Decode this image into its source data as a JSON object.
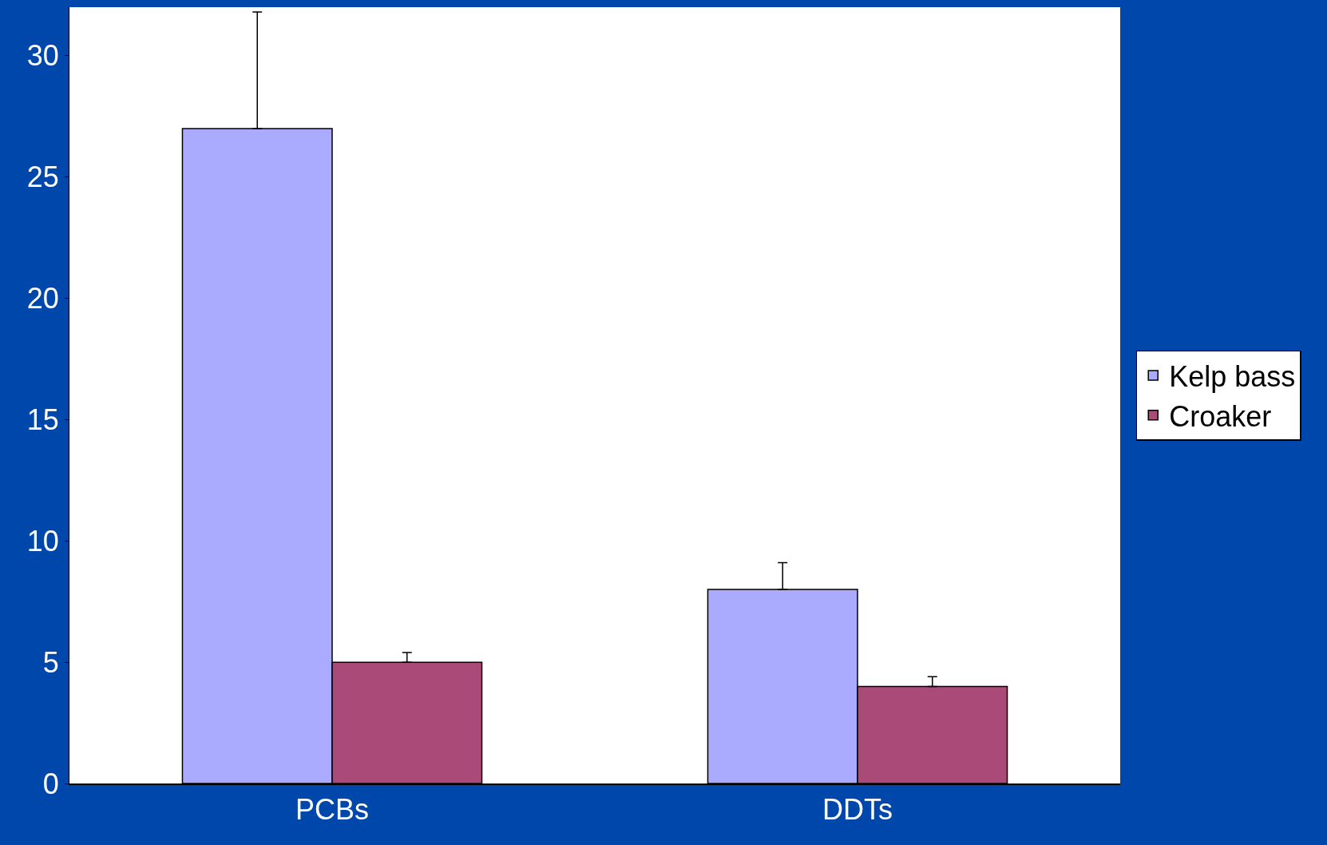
{
  "chart_data": {
    "type": "bar",
    "categories": [
      "PCBs",
      "DDTs"
    ],
    "series": [
      {
        "name": "Kelp bass",
        "color": "#aaaaff",
        "values": [
          27,
          8
        ],
        "errors": [
          [
            27,
            31.8
          ],
          [
            8,
            9.1
          ]
        ]
      },
      {
        "name": "Croaker",
        "color": "#aa4a78",
        "values": [
          5,
          4
        ],
        "errors": [
          [
            5,
            5.4
          ],
          [
            4,
            4.4
          ]
        ]
      }
    ],
    "ylim": [
      0,
      32
    ],
    "yticks": [
      0,
      5,
      10,
      15,
      20,
      25,
      30
    ],
    "legend": "right"
  }
}
